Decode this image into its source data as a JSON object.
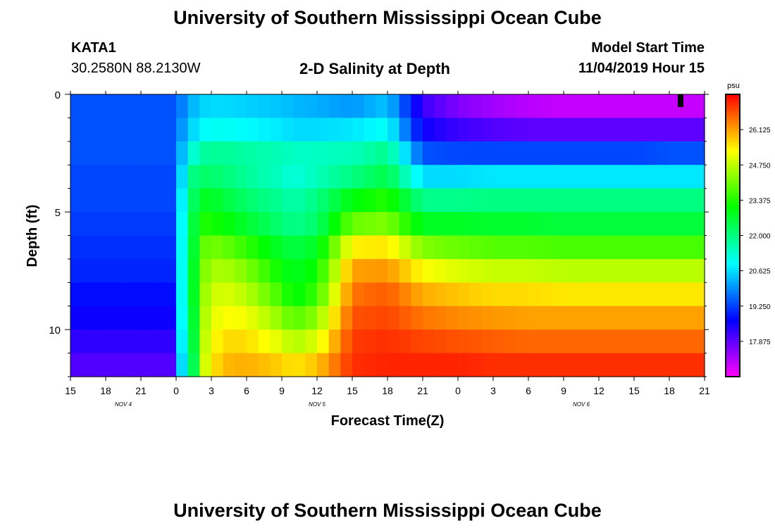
{
  "page": {
    "title_top": "University of Southern Mississippi Ocean Cube",
    "title_bottom": "University of Southern Mississippi Ocean Cube",
    "station_id": "KATA1",
    "station_coords": "30.2580N 88.2130W",
    "plot_title": "2-D Salinity at Depth",
    "model_start_label": "Model Start Time",
    "model_start_value": "11/04/2019 Hour 15"
  },
  "chart_data": {
    "type": "heatmap",
    "title": "2-D Salinity at Depth",
    "xlabel": "Forecast Time(Z)",
    "ylabel": "Depth (ft)",
    "colorbar_unit": "psu",
    "x_tick_labels": [
      "15",
      "18",
      "21",
      "0",
      "3",
      "6",
      "9",
      "12",
      "15",
      "18",
      "21",
      "0",
      "3",
      "6",
      "9",
      "12",
      "15",
      "18",
      "21"
    ],
    "date_labels": [
      {
        "label": "NOV 4",
        "tick_index": 1.5
      },
      {
        "label": "NOV 5",
        "tick_index": 7
      },
      {
        "label": "NOV 6",
        "tick_index": 14.5
      }
    ],
    "y_tick_labels": [
      {
        "value": 0,
        "label": "0"
      },
      {
        "value": 5,
        "label": "5"
      },
      {
        "value": 10,
        "label": "10"
      }
    ],
    "ylim": [
      12,
      0
    ],
    "x_hours": [
      0,
      54
    ],
    "colorbar_ticks": [
      "26.125",
      "24.750",
      "23.375",
      "22.000",
      "20.625",
      "19.250",
      "17.875"
    ],
    "colorbar_range": [
      16.5,
      27.5
    ],
    "depth_layers": [
      0,
      1,
      2,
      3,
      4,
      5,
      6,
      7,
      8,
      9,
      10,
      11
    ],
    "time_profile_hours": [
      0,
      9,
      9.5,
      10.5,
      11,
      12,
      13,
      15,
      18,
      19,
      21,
      24,
      27,
      30,
      33,
      36,
      39,
      42,
      45,
      48,
      51,
      54
    ],
    "salinity_profiles": [
      [
        19.4,
        19.4,
        19.8,
        20.3,
        20.5,
        20.6,
        20.6,
        20.5,
        20.4,
        20.3,
        20.2,
        20.0,
        20.4,
        18.2,
        17.6,
        17.3,
        17.1,
        17.0,
        17.0,
        17.0,
        17.0,
        17.0
      ],
      [
        19.4,
        19.4,
        20.0,
        20.6,
        20.9,
        21.0,
        21.0,
        20.9,
        20.7,
        20.6,
        20.6,
        20.7,
        21.0,
        18.6,
        18.2,
        18.0,
        17.9,
        17.9,
        17.9,
        17.9,
        17.9,
        17.9
      ],
      [
        19.4,
        19.4,
        20.3,
        21.3,
        21.7,
        21.8,
        21.8,
        21.7,
        21.5,
        21.4,
        21.4,
        21.5,
        21.9,
        19.4,
        19.3,
        19.3,
        19.3,
        19.3,
        19.3,
        19.3,
        19.4,
        19.4
      ],
      [
        19.3,
        19.3,
        20.6,
        22.0,
        22.2,
        22.2,
        22.1,
        21.8,
        21.4,
        21.2,
        21.5,
        22.0,
        22.5,
        20.6,
        20.6,
        20.7,
        20.7,
        20.7,
        20.7,
        20.7,
        20.7,
        20.7
      ],
      [
        19.3,
        19.3,
        20.8,
        22.3,
        22.8,
        22.8,
        22.6,
        22.2,
        21.8,
        21.6,
        22.0,
        23.0,
        23.4,
        21.9,
        21.9,
        22.0,
        22.0,
        22.0,
        22.0,
        22.0,
        22.0,
        22.0
      ],
      [
        19.2,
        19.2,
        20.9,
        22.6,
        23.3,
        23.3,
        23.1,
        22.7,
        22.1,
        21.9,
        22.2,
        24.0,
        24.2,
        22.8,
        22.8,
        22.7,
        22.7,
        22.6,
        22.6,
        22.6,
        22.6,
        22.6
      ],
      [
        19.1,
        19.1,
        21.0,
        22.7,
        23.8,
        24.1,
        24.0,
        23.5,
        22.7,
        22.5,
        22.8,
        25.4,
        25.5,
        24.2,
        24.0,
        23.8,
        23.8,
        23.7,
        23.7,
        23.7,
        23.7,
        23.7
      ],
      [
        19.0,
        19.0,
        21.0,
        22.8,
        24.0,
        24.5,
        24.6,
        24.2,
        23.1,
        22.8,
        23.2,
        26.1,
        26.2,
        25.3,
        25.0,
        24.8,
        24.8,
        24.7,
        24.7,
        24.7,
        24.7,
        24.7
      ],
      [
        18.8,
        18.8,
        21.0,
        22.8,
        24.2,
        24.8,
        25.0,
        24.7,
        23.6,
        23.0,
        23.6,
        26.5,
        26.7,
        26.0,
        25.8,
        25.6,
        25.6,
        25.5,
        25.5,
        25.5,
        25.5,
        25.5
      ],
      [
        18.6,
        18.6,
        20.9,
        22.7,
        24.3,
        25.0,
        25.3,
        25.2,
        24.3,
        23.8,
        24.3,
        26.8,
        26.9,
        26.5,
        26.3,
        26.2,
        26.1,
        26.1,
        26.1,
        26.1,
        26.1,
        26.1
      ],
      [
        18.3,
        18.3,
        20.8,
        22.6,
        24.4,
        25.2,
        25.6,
        25.6,
        25.0,
        24.6,
        25.0,
        27.0,
        27.1,
        26.9,
        26.8,
        26.7,
        26.6,
        26.6,
        26.6,
        26.6,
        26.6,
        26.6
      ],
      [
        18.0,
        18.0,
        20.6,
        22.4,
        24.5,
        25.4,
        25.9,
        26.0,
        25.7,
        25.5,
        25.8,
        27.1,
        27.2,
        27.2,
        27.2,
        27.1,
        27.1,
        27.1,
        27.1,
        27.1,
        27.1,
        27.1
      ]
    ]
  }
}
